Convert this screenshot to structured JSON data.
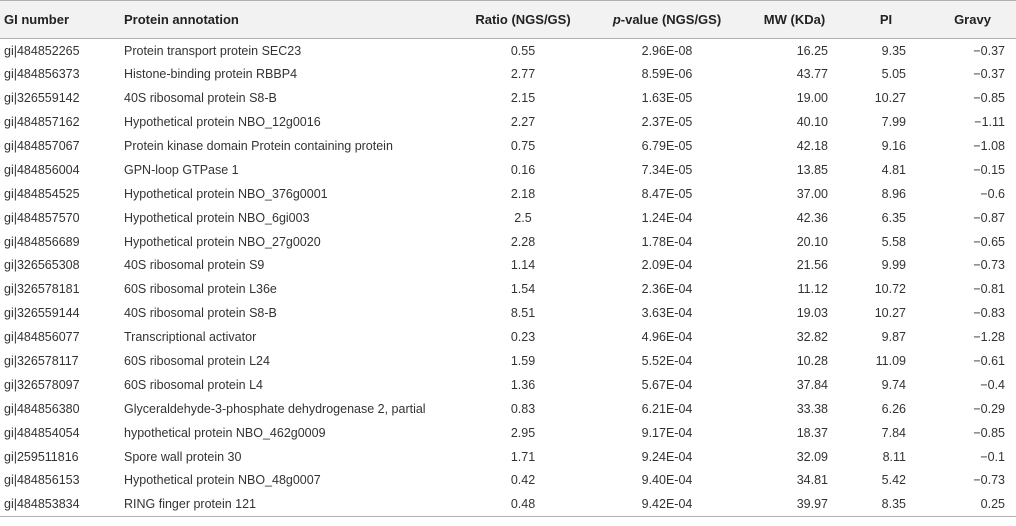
{
  "header": {
    "gi_number": "GI number",
    "protein_annotation": "Protein annotation",
    "ratio": "Ratio (NGS/GS)",
    "p_value_italic": "p",
    "p_value_rest": "-value (NGS/GS)",
    "mw": "MW (KDa)",
    "pi": "PI",
    "gravy": "Gravy"
  },
  "rows": [
    {
      "gi": "gi|484852265",
      "annotation": "Protein transport protein SEC23",
      "ratio": "0.55",
      "p": "2.96E-08",
      "mw": "16.25",
      "pi": "9.35",
      "gravy": "−0.37"
    },
    {
      "gi": "gi|484856373",
      "annotation": "Histone-binding protein RBBP4",
      "ratio": "2.77",
      "p": "8.59E-06",
      "mw": "43.77",
      "pi": "5.05",
      "gravy": "−0.37"
    },
    {
      "gi": "gi|326559142",
      "annotation": "40S ribosomal protein S8-B",
      "ratio": "2.15",
      "p": "1.63E-05",
      "mw": "19.00",
      "pi": "10.27",
      "gravy": "−0.85"
    },
    {
      "gi": "gi|484857162",
      "annotation": "Hypothetical protein NBO_12g0016",
      "ratio": "2.27",
      "p": "2.37E-05",
      "mw": "40.10",
      "pi": "7.99",
      "gravy": "−1.11"
    },
    {
      "gi": "gi|484857067",
      "annotation": "Protein kinase domain Protein containing protein",
      "ratio": "0.75",
      "p": "6.79E-05",
      "mw": "42.18",
      "pi": "9.16",
      "gravy": "−1.08"
    },
    {
      "gi": "gi|484856004",
      "annotation": "GPN-loop GTPase 1",
      "ratio": "0.16",
      "p": "7.34E-05",
      "mw": "13.85",
      "pi": "4.81",
      "gravy": "−0.15"
    },
    {
      "gi": "gi|484854525",
      "annotation": "Hypothetical protein NBO_376g0001",
      "ratio": "2.18",
      "p": "8.47E-05",
      "mw": "37.00",
      "pi": "8.96",
      "gravy": "−0.6"
    },
    {
      "gi": "gi|484857570",
      "annotation": "Hypothetical protein NBO_6gi003",
      "ratio": "2.5",
      "p": "1.24E-04",
      "mw": "42.36",
      "pi": "6.35",
      "gravy": "−0.87"
    },
    {
      "gi": "gi|484856689",
      "annotation": "Hypothetical protein NBO_27g0020",
      "ratio": "2.28",
      "p": "1.78E-04",
      "mw": "20.10",
      "pi": "5.58",
      "gravy": "−0.65"
    },
    {
      "gi": "gi|326565308",
      "annotation": "40S ribosomal protein S9",
      "ratio": "1.14",
      "p": "2.09E-04",
      "mw": "21.56",
      "pi": "9.99",
      "gravy": "−0.73"
    },
    {
      "gi": "gi|326578181",
      "annotation": "60S ribosomal protein L36e",
      "ratio": "1.54",
      "p": "2.36E-04",
      "mw": "11.12",
      "pi": "10.72",
      "gravy": "−0.81"
    },
    {
      "gi": "gi|326559144",
      "annotation": "40S ribosomal protein S8-B",
      "ratio": "8.51",
      "p": "3.63E-04",
      "mw": "19.03",
      "pi": "10.27",
      "gravy": "−0.83"
    },
    {
      "gi": "gi|484856077",
      "annotation": "Transcriptional activator",
      "ratio": "0.23",
      "p": "4.96E-04",
      "mw": "32.82",
      "pi": "9.87",
      "gravy": "−1.28"
    },
    {
      "gi": "gi|326578117",
      "annotation": "60S ribosomal protein L24",
      "ratio": "1.59",
      "p": "5.52E-04",
      "mw": "10.28",
      "pi": "11.09",
      "gravy": "−0.61"
    },
    {
      "gi": "gi|326578097",
      "annotation": "60S ribosomal protein L4",
      "ratio": "1.36",
      "p": "5.67E-04",
      "mw": "37.84",
      "pi": "9.74",
      "gravy": "−0.4"
    },
    {
      "gi": "gi|484856380",
      "annotation": "Glyceraldehyde-3-phosphate dehydrogenase 2, partial",
      "ratio": "0.83",
      "p": "6.21E-04",
      "mw": "33.38",
      "pi": "6.26",
      "gravy": "−0.29"
    },
    {
      "gi": "gi|484854054",
      "annotation": "hypothetical protein NBO_462g0009",
      "ratio": "2.95",
      "p": "9.17E-04",
      "mw": "18.37",
      "pi": "7.84",
      "gravy": "−0.85"
    },
    {
      "gi": "gi|259511816",
      "annotation": "Spore wall protein 30",
      "ratio": "1.71",
      "p": "9.24E-04",
      "mw": "32.09",
      "pi": "8.11",
      "gravy": "−0.1"
    },
    {
      "gi": "gi|484856153",
      "annotation": "Hypothetical protein NBO_48g0007",
      "ratio": "0.42",
      "p": "9.40E-04",
      "mw": "34.81",
      "pi": "5.42",
      "gravy": "−0.73"
    },
    {
      "gi": "gi|484853834",
      "annotation": "RING finger protein 121",
      "ratio": "0.48",
      "p": "9.42E-04",
      "mw": "39.97",
      "pi": "8.35",
      "gravy": "0.25"
    }
  ]
}
